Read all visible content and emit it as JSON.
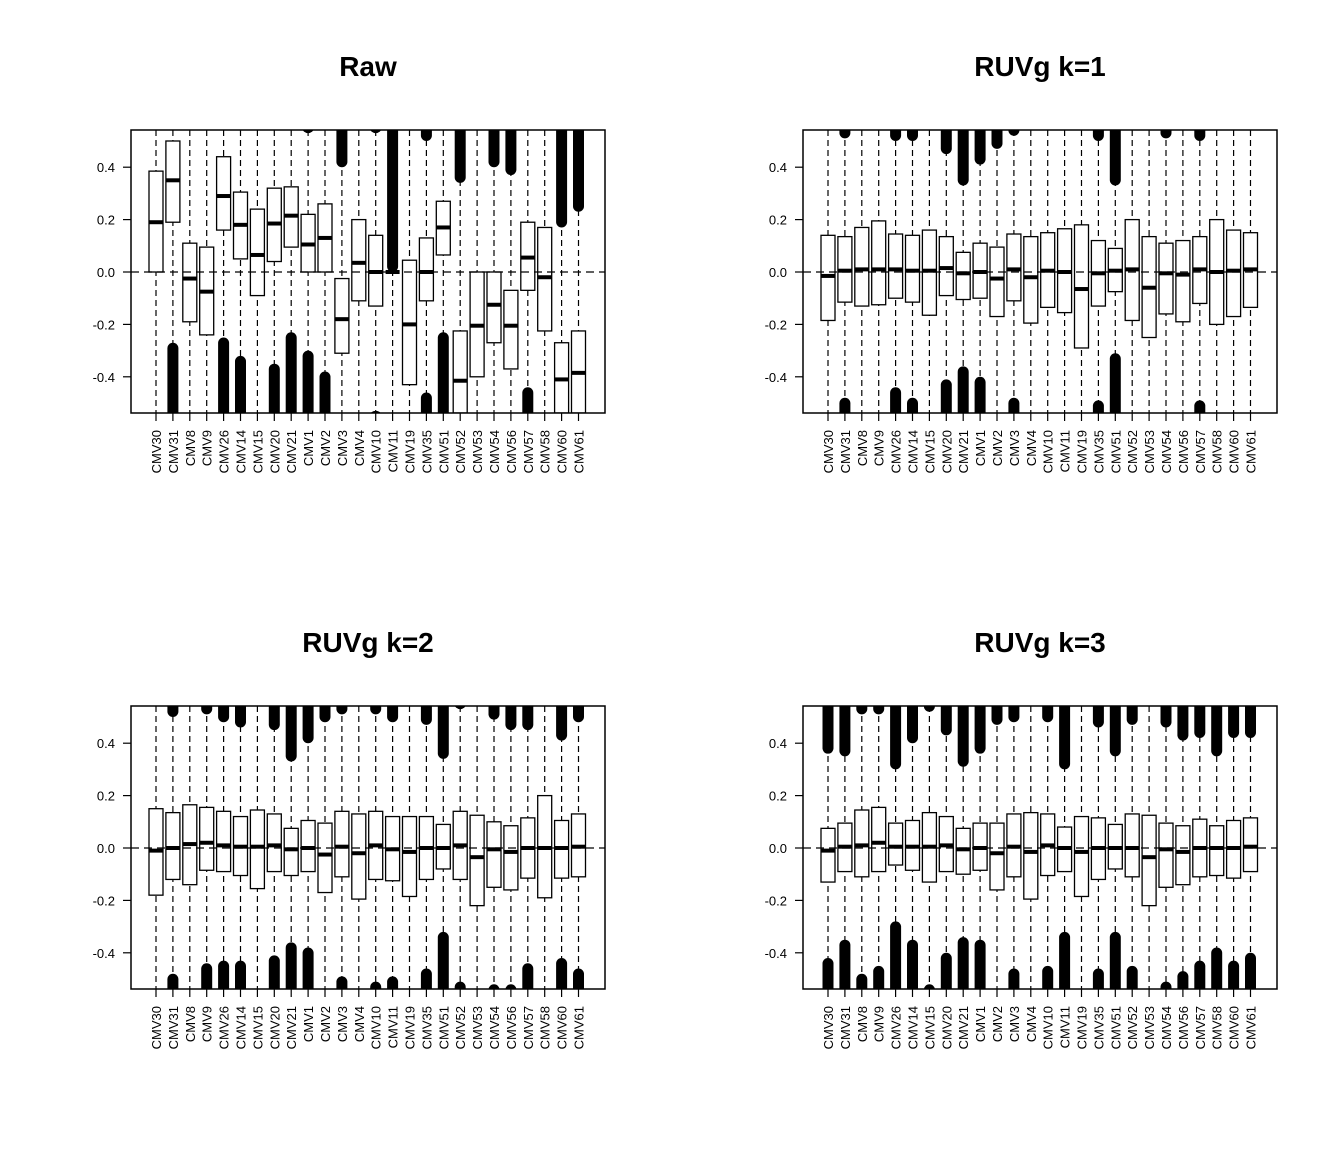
{
  "figure": {
    "samples": [
      "CMV30",
      "CMV31",
      "CMV8",
      "CMV9",
      "CMV26",
      "CMV14",
      "CMV15",
      "CMV20",
      "CMV21",
      "CMV1",
      "CMV2",
      "CMV3",
      "CMV4",
      "CMV10",
      "CMV11",
      "CMV19",
      "CMV35",
      "CMV51",
      "CMV52",
      "CMV53",
      "CMV54",
      "CMV56",
      "CMV57",
      "CMV58",
      "CMV60",
      "CMV61"
    ]
  },
  "chart_data": [
    {
      "type": "boxplot",
      "title": "Raw",
      "xlabel": "",
      "ylabel": "",
      "ylim": [
        -0.54,
        0.54
      ],
      "yticks": [
        "0.4",
        "0.2",
        "0.0",
        "-0.2",
        "-0.4"
      ],
      "reference_line": 0,
      "categories": [
        "CMV30",
        "CMV31",
        "CMV8",
        "CMV9",
        "CMV26",
        "CMV14",
        "CMV15",
        "CMV20",
        "CMV21",
        "CMV1",
        "CMV2",
        "CMV3",
        "CMV4",
        "CMV10",
        "CMV11",
        "CMV19",
        "CMV35",
        "CMV51",
        "CMV52",
        "CMV53",
        "CMV54",
        "CMV56",
        "CMV57",
        "CMV58",
        "CMV60",
        "CMV61"
      ],
      "boxes": [
        {
          "q1": 0.0,
          "median": 0.19,
          "q3": 0.385,
          "outlier_low": null,
          "outlier_high": null
        },
        {
          "q1": 0.19,
          "median": 0.35,
          "q3": 0.5,
          "outlier_low": -0.27,
          "outlier_high": null
        },
        {
          "q1": -0.19,
          "median": -0.025,
          "q3": 0.11,
          "outlier_low": null,
          "outlier_high": null
        },
        {
          "q1": -0.24,
          "median": -0.075,
          "q3": 0.095,
          "outlier_low": null,
          "outlier_high": null
        },
        {
          "q1": 0.16,
          "median": 0.29,
          "q3": 0.44,
          "outlier_low": -0.25,
          "outlier_high": null
        },
        {
          "q1": 0.05,
          "median": 0.18,
          "q3": 0.305,
          "outlier_low": -0.32,
          "outlier_high": null
        },
        {
          "q1": -0.09,
          "median": 0.065,
          "q3": 0.24,
          "outlier_low": null,
          "outlier_high": null
        },
        {
          "q1": 0.04,
          "median": 0.185,
          "q3": 0.32,
          "outlier_low": -0.35,
          "outlier_high": null
        },
        {
          "q1": 0.095,
          "median": 0.215,
          "q3": 0.325,
          "outlier_low": -0.23,
          "outlier_high": null
        },
        {
          "q1": 0.0,
          "median": 0.105,
          "q3": 0.22,
          "outlier_low": -0.3,
          "outlier_high": 0.53
        },
        {
          "q1": 0.0,
          "median": 0.13,
          "q3": 0.26,
          "outlier_low": -0.38,
          "outlier_high": null
        },
        {
          "q1": -0.31,
          "median": -0.18,
          "q3": -0.025,
          "outlier_low": null,
          "outlier_high": 0.4
        },
        {
          "q1": -0.11,
          "median": 0.035,
          "q3": 0.2,
          "outlier_low": null,
          "outlier_high": null
        },
        {
          "q1": -0.13,
          "median": 0.0,
          "q3": 0.14,
          "outlier_low": -0.53,
          "outlier_high": 0.53
        },
        {
          "q1": 0.0,
          "median": 0.0,
          "q3": 0.0,
          "outlier_low": null,
          "outlier_high": 0.0
        },
        {
          "q1": -0.43,
          "median": -0.2,
          "q3": 0.045,
          "outlier_low": null,
          "outlier_high": null
        },
        {
          "q1": -0.11,
          "median": 0.0,
          "q3": 0.13,
          "outlier_low": -0.46,
          "outlier_high": 0.5
        },
        {
          "q1": 0.065,
          "median": 0.17,
          "q3": 0.27,
          "outlier_low": -0.23,
          "outlier_high": null
        },
        {
          "q1": -0.54,
          "median": -0.415,
          "q3": -0.225,
          "outlier_low": null,
          "outlier_high": 0.34
        },
        {
          "q1": -0.4,
          "median": -0.205,
          "q3": 0.0,
          "outlier_low": null,
          "outlier_high": null
        },
        {
          "q1": -0.27,
          "median": -0.125,
          "q3": 0.0,
          "outlier_low": null,
          "outlier_high": 0.4
        },
        {
          "q1": -0.37,
          "median": -0.205,
          "q3": -0.07,
          "outlier_low": null,
          "outlier_high": 0.37
        },
        {
          "q1": -0.07,
          "median": 0.055,
          "q3": 0.19,
          "outlier_low": -0.44,
          "outlier_high": null
        },
        {
          "q1": -0.225,
          "median": -0.02,
          "q3": 0.17,
          "outlier_low": null,
          "outlier_high": null
        },
        {
          "q1": -0.54,
          "median": -0.41,
          "q3": -0.27,
          "outlier_low": null,
          "outlier_high": 0.17
        },
        {
          "q1": -0.54,
          "median": -0.385,
          "q3": -0.225,
          "outlier_low": null,
          "outlier_high": 0.23
        }
      ]
    },
    {
      "type": "boxplot",
      "title": "RUVg k=1",
      "xlabel": "",
      "ylabel": "",
      "ylim": [
        -0.54,
        0.54
      ],
      "yticks": [
        "0.4",
        "0.2",
        "0.0",
        "-0.2",
        "-0.4"
      ],
      "reference_line": 0,
      "categories": [
        "CMV30",
        "CMV31",
        "CMV8",
        "CMV9",
        "CMV26",
        "CMV14",
        "CMV15",
        "CMV20",
        "CMV21",
        "CMV1",
        "CMV2",
        "CMV3",
        "CMV4",
        "CMV10",
        "CMV11",
        "CMV19",
        "CMV35",
        "CMV51",
        "CMV52",
        "CMV53",
        "CMV54",
        "CMV56",
        "CMV57",
        "CMV58",
        "CMV60",
        "CMV61"
      ],
      "boxes": [
        {
          "q1": -0.185,
          "median": -0.015,
          "q3": 0.14,
          "outlier_low": null,
          "outlier_high": null
        },
        {
          "q1": -0.115,
          "median": 0.005,
          "q3": 0.135,
          "outlier_low": -0.48,
          "outlier_high": 0.51
        },
        {
          "q1": -0.13,
          "median": 0.01,
          "q3": 0.17,
          "outlier_low": null,
          "outlier_high": null
        },
        {
          "q1": -0.125,
          "median": 0.01,
          "q3": 0.195,
          "outlier_low": null,
          "outlier_high": null
        },
        {
          "q1": -0.1,
          "median": 0.01,
          "q3": 0.145,
          "outlier_low": -0.44,
          "outlier_high": 0.5
        },
        {
          "q1": -0.115,
          "median": 0.005,
          "q3": 0.14,
          "outlier_low": -0.48,
          "outlier_high": 0.5
        },
        {
          "q1": -0.165,
          "median": 0.005,
          "q3": 0.16,
          "outlier_low": null,
          "outlier_high": null
        },
        {
          "q1": -0.09,
          "median": 0.015,
          "q3": 0.135,
          "outlier_low": -0.41,
          "outlier_high": 0.45
        },
        {
          "q1": -0.105,
          "median": -0.005,
          "q3": 0.075,
          "outlier_low": -0.36,
          "outlier_high": 0.33
        },
        {
          "q1": -0.1,
          "median": 0.0,
          "q3": 0.11,
          "outlier_low": -0.4,
          "outlier_high": 0.41
        },
        {
          "q1": -0.17,
          "median": -0.025,
          "q3": 0.095,
          "outlier_low": null,
          "outlier_high": 0.47
        },
        {
          "q1": -0.11,
          "median": 0.01,
          "q3": 0.145,
          "outlier_low": -0.48,
          "outlier_high": 0.52
        },
        {
          "q1": -0.195,
          "median": -0.02,
          "q3": 0.135,
          "outlier_low": null,
          "outlier_high": null
        },
        {
          "q1": -0.135,
          "median": 0.005,
          "q3": 0.15,
          "outlier_low": null,
          "outlier_high": null
        },
        {
          "q1": -0.155,
          "median": 0.0,
          "q3": 0.165,
          "outlier_low": null,
          "outlier_high": null
        },
        {
          "q1": -0.29,
          "median": -0.065,
          "q3": 0.18,
          "outlier_low": null,
          "outlier_high": null
        },
        {
          "q1": -0.13,
          "median": -0.005,
          "q3": 0.12,
          "outlier_low": -0.49,
          "outlier_high": 0.5
        },
        {
          "q1": -0.075,
          "median": 0.005,
          "q3": 0.09,
          "outlier_low": -0.31,
          "outlier_high": 0.33
        },
        {
          "q1": -0.185,
          "median": 0.01,
          "q3": 0.2,
          "outlier_low": null,
          "outlier_high": null
        },
        {
          "q1": -0.25,
          "median": -0.06,
          "q3": 0.135,
          "outlier_low": null,
          "outlier_high": null
        },
        {
          "q1": -0.16,
          "median": -0.005,
          "q3": 0.11,
          "outlier_low": -0.54,
          "outlier_high": 0.51
        },
        {
          "q1": -0.19,
          "median": -0.01,
          "q3": 0.12,
          "outlier_low": null,
          "outlier_high": null
        },
        {
          "q1": -0.12,
          "median": 0.01,
          "q3": 0.135,
          "outlier_low": -0.49,
          "outlier_high": 0.5
        },
        {
          "q1": -0.2,
          "median": 0.0,
          "q3": 0.2,
          "outlier_low": null,
          "outlier_high": null
        },
        {
          "q1": -0.17,
          "median": 0.005,
          "q3": 0.16,
          "outlier_low": null,
          "outlier_high": null
        },
        {
          "q1": -0.135,
          "median": 0.01,
          "q3": 0.15,
          "outlier_low": null,
          "outlier_high": null
        }
      ]
    },
    {
      "type": "boxplot",
      "title": "RUVg k=2",
      "xlabel": "",
      "ylabel": "",
      "ylim": [
        -0.54,
        0.54
      ],
      "yticks": [
        "0.4",
        "0.2",
        "0.0",
        "-0.2",
        "-0.4"
      ],
      "reference_line": 0,
      "categories": [
        "CMV30",
        "CMV31",
        "CMV8",
        "CMV9",
        "CMV26",
        "CMV14",
        "CMV15",
        "CMV20",
        "CMV21",
        "CMV1",
        "CMV2",
        "CMV3",
        "CMV4",
        "CMV10",
        "CMV11",
        "CMV19",
        "CMV35",
        "CMV51",
        "CMV52",
        "CMV53",
        "CMV54",
        "CMV56",
        "CMV57",
        "CMV58",
        "CMV60",
        "CMV61"
      ],
      "boxes": [
        {
          "q1": -0.18,
          "median": -0.01,
          "q3": 0.15,
          "outlier_low": null,
          "outlier_high": null
        },
        {
          "q1": -0.12,
          "median": 0.0,
          "q3": 0.135,
          "outlier_low": -0.48,
          "outlier_high": 0.5
        },
        {
          "q1": -0.14,
          "median": 0.015,
          "q3": 0.165,
          "outlier_low": null,
          "outlier_high": null
        },
        {
          "q1": -0.085,
          "median": 0.02,
          "q3": 0.155,
          "outlier_low": -0.44,
          "outlier_high": 0.51
        },
        {
          "q1": -0.09,
          "median": 0.01,
          "q3": 0.14,
          "outlier_low": -0.43,
          "outlier_high": 0.48
        },
        {
          "q1": -0.105,
          "median": 0.005,
          "q3": 0.12,
          "outlier_low": -0.43,
          "outlier_high": 0.46
        },
        {
          "q1": -0.155,
          "median": 0.005,
          "q3": 0.145,
          "outlier_low": null,
          "outlier_high": null
        },
        {
          "q1": -0.09,
          "median": 0.01,
          "q3": 0.13,
          "outlier_low": -0.41,
          "outlier_high": 0.45
        },
        {
          "q1": -0.105,
          "median": -0.005,
          "q3": 0.075,
          "outlier_low": -0.36,
          "outlier_high": 0.33
        },
        {
          "q1": -0.09,
          "median": 0.0,
          "q3": 0.105,
          "outlier_low": -0.38,
          "outlier_high": 0.4
        },
        {
          "q1": -0.17,
          "median": -0.025,
          "q3": 0.095,
          "outlier_low": null,
          "outlier_high": 0.48
        },
        {
          "q1": -0.11,
          "median": 0.005,
          "q3": 0.14,
          "outlier_low": -0.49,
          "outlier_high": 0.51
        },
        {
          "q1": -0.195,
          "median": -0.02,
          "q3": 0.13,
          "outlier_low": null,
          "outlier_high": null
        },
        {
          "q1": -0.12,
          "median": 0.01,
          "q3": 0.14,
          "outlier_low": -0.51,
          "outlier_high": 0.51
        },
        {
          "q1": -0.125,
          "median": -0.005,
          "q3": 0.12,
          "outlier_low": -0.49,
          "outlier_high": 0.48
        },
        {
          "q1": -0.185,
          "median": -0.015,
          "q3": 0.12,
          "outlier_low": null,
          "outlier_high": null
        },
        {
          "q1": -0.12,
          "median": 0.0,
          "q3": 0.12,
          "outlier_low": -0.46,
          "outlier_high": 0.47
        },
        {
          "q1": -0.08,
          "median": 0.0,
          "q3": 0.09,
          "outlier_low": -0.32,
          "outlier_high": 0.34
        },
        {
          "q1": -0.12,
          "median": 0.01,
          "q3": 0.14,
          "outlier_low": -0.51,
          "outlier_high": 0.53
        },
        {
          "q1": -0.22,
          "median": -0.035,
          "q3": 0.125,
          "outlier_low": null,
          "outlier_high": null
        },
        {
          "q1": -0.15,
          "median": -0.005,
          "q3": 0.1,
          "outlier_low": -0.52,
          "outlier_high": 0.49
        },
        {
          "q1": -0.16,
          "median": -0.015,
          "q3": 0.085,
          "outlier_low": -0.52,
          "outlier_high": 0.45
        },
        {
          "q1": -0.115,
          "median": 0.0,
          "q3": 0.115,
          "outlier_low": -0.44,
          "outlier_high": 0.45
        },
        {
          "q1": -0.19,
          "median": 0.0,
          "q3": 0.2,
          "outlier_low": null,
          "outlier_high": null
        },
        {
          "q1": -0.115,
          "median": 0.0,
          "q3": 0.105,
          "outlier_low": -0.42,
          "outlier_high": 0.41
        },
        {
          "q1": -0.11,
          "median": 0.005,
          "q3": 0.13,
          "outlier_low": -0.46,
          "outlier_high": 0.48
        }
      ]
    },
    {
      "type": "boxplot",
      "title": "RUVg k=3",
      "xlabel": "",
      "ylabel": "",
      "ylim": [
        -0.54,
        0.54
      ],
      "yticks": [
        "0.4",
        "0.2",
        "0.0",
        "-0.2",
        "-0.4"
      ],
      "reference_line": 0,
      "categories": [
        "CMV30",
        "CMV31",
        "CMV8",
        "CMV9",
        "CMV26",
        "CMV14",
        "CMV15",
        "CMV20",
        "CMV21",
        "CMV1",
        "CMV2",
        "CMV3",
        "CMV4",
        "CMV10",
        "CMV11",
        "CMV19",
        "CMV35",
        "CMV51",
        "CMV52",
        "CMV53",
        "CMV54",
        "CMV56",
        "CMV57",
        "CMV58",
        "CMV60",
        "CMV61"
      ],
      "boxes": [
        {
          "q1": -0.13,
          "median": -0.01,
          "q3": 0.075,
          "outlier_low": -0.42,
          "outlier_high": 0.36
        },
        {
          "q1": -0.09,
          "median": 0.005,
          "q3": 0.095,
          "outlier_low": -0.35,
          "outlier_high": 0.35
        },
        {
          "q1": -0.11,
          "median": 0.01,
          "q3": 0.145,
          "outlier_low": -0.48,
          "outlier_high": 0.51
        },
        {
          "q1": -0.09,
          "median": 0.02,
          "q3": 0.155,
          "outlier_low": -0.45,
          "outlier_high": 0.51
        },
        {
          "q1": -0.065,
          "median": 0.005,
          "q3": 0.095,
          "outlier_low": -0.28,
          "outlier_high": 0.3
        },
        {
          "q1": -0.085,
          "median": 0.005,
          "q3": 0.105,
          "outlier_low": -0.35,
          "outlier_high": 0.4
        },
        {
          "q1": -0.13,
          "median": 0.005,
          "q3": 0.135,
          "outlier_low": -0.52,
          "outlier_high": 0.52
        },
        {
          "q1": -0.09,
          "median": 0.01,
          "q3": 0.12,
          "outlier_low": -0.4,
          "outlier_high": 0.43
        },
        {
          "q1": -0.1,
          "median": -0.005,
          "q3": 0.075,
          "outlier_low": -0.34,
          "outlier_high": 0.31
        },
        {
          "q1": -0.085,
          "median": 0.0,
          "q3": 0.095,
          "outlier_low": -0.35,
          "outlier_high": 0.36
        },
        {
          "q1": -0.16,
          "median": -0.02,
          "q3": 0.095,
          "outlier_low": -0.54,
          "outlier_high": 0.47
        },
        {
          "q1": -0.11,
          "median": 0.005,
          "q3": 0.13,
          "outlier_low": -0.46,
          "outlier_high": 0.48
        },
        {
          "q1": -0.195,
          "median": -0.015,
          "q3": 0.135,
          "outlier_low": null,
          "outlier_high": null
        },
        {
          "q1": -0.105,
          "median": 0.01,
          "q3": 0.13,
          "outlier_low": -0.45,
          "outlier_high": 0.48
        },
        {
          "q1": -0.09,
          "median": 0.0,
          "q3": 0.08,
          "outlier_low": -0.32,
          "outlier_high": 0.3
        },
        {
          "q1": -0.185,
          "median": -0.015,
          "q3": 0.12,
          "outlier_low": null,
          "outlier_high": null
        },
        {
          "q1": -0.12,
          "median": 0.0,
          "q3": 0.115,
          "outlier_low": -0.46,
          "outlier_high": 0.46
        },
        {
          "q1": -0.08,
          "median": 0.0,
          "q3": 0.09,
          "outlier_low": -0.32,
          "outlier_high": 0.35
        },
        {
          "q1": -0.11,
          "median": 0.0,
          "q3": 0.13,
          "outlier_low": -0.45,
          "outlier_high": 0.47
        },
        {
          "q1": -0.22,
          "median": -0.035,
          "q3": 0.125,
          "outlier_low": null,
          "outlier_high": null
        },
        {
          "q1": -0.15,
          "median": -0.005,
          "q3": 0.095,
          "outlier_low": -0.51,
          "outlier_high": 0.46
        },
        {
          "q1": -0.14,
          "median": -0.015,
          "q3": 0.085,
          "outlier_low": -0.47,
          "outlier_high": 0.41
        },
        {
          "q1": -0.11,
          "median": 0.0,
          "q3": 0.11,
          "outlier_low": -0.43,
          "outlier_high": 0.42
        },
        {
          "q1": -0.105,
          "median": 0.0,
          "q3": 0.085,
          "outlier_low": -0.38,
          "outlier_high": 0.35
        },
        {
          "q1": -0.115,
          "median": 0.0,
          "q3": 0.105,
          "outlier_low": -0.43,
          "outlier_high": 0.42
        },
        {
          "q1": -0.09,
          "median": 0.005,
          "q3": 0.115,
          "outlier_low": -0.4,
          "outlier_high": 0.42
        }
      ]
    }
  ]
}
